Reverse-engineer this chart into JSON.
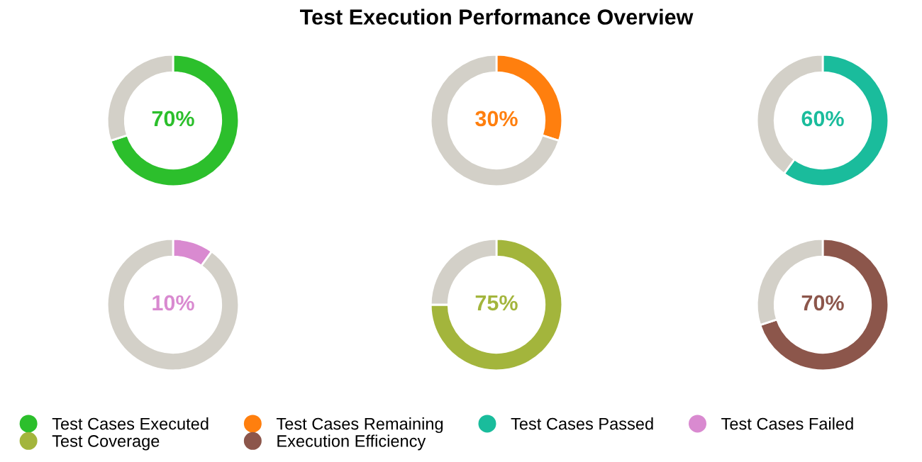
{
  "chart_data": [
    {
      "type": "donut",
      "categories": [
        "Test Cases Executed",
        null
      ],
      "values": [
        70,
        30
      ],
      "colors": [
        "#2cbf2c",
        "#d3d0c8"
      ],
      "value_labels": [
        "70%",
        null
      ],
      "legend": "bottom"
    },
    {
      "type": "donut",
      "title": "Test Execution Performance Overview",
      "categories": [
        "Test Cases Remaining",
        null
      ],
      "values": [
        30,
        70
      ],
      "colors": [
        "#ff7f0e",
        "#d3d0c8"
      ],
      "value_labels": [
        "30%",
        null
      ],
      "legend": "bottom"
    },
    {
      "type": "donut",
      "categories": [
        "Test Cases Passed",
        null
      ],
      "values": [
        60,
        40
      ],
      "colors": [
        "#1abc9c",
        "#d3d0c8"
      ],
      "value_labels": [
        "60%",
        null
      ],
      "legend": "bottom"
    },
    {
      "type": "donut",
      "categories": [
        "Test Cases Failed",
        null
      ],
      "values": [
        10,
        90
      ],
      "colors": [
        "#d98ad0",
        "#d3d0c8"
      ],
      "value_labels": [
        "10%",
        null
      ],
      "legend": "bottom"
    },
    {
      "type": "donut",
      "categories": [
        "Test Coverage",
        null
      ],
      "values": [
        75,
        25
      ],
      "colors": [
        "#a3b53c",
        "#d3d0c8"
      ],
      "value_labels": [
        "75%",
        null
      ],
      "legend": "bottom"
    },
    {
      "type": "donut",
      "categories": [
        "Execution Efficiency",
        null
      ],
      "values": [
        70,
        30
      ],
      "colors": [
        "#8c564b",
        "#d3d0c8"
      ],
      "value_labels": [
        "70%",
        null
      ],
      "legend": "bottom"
    }
  ]
}
